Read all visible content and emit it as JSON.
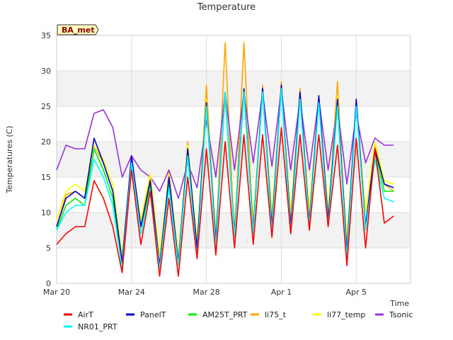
{
  "chart_data": {
    "type": "line",
    "title": "Temperature",
    "xlabel": "Time",
    "ylabel": "Temperatures (C)",
    "badge": "BA_met",
    "xlim": [
      0,
      18.9
    ],
    "ylim": [
      0,
      35
    ],
    "yticks": [
      0,
      5,
      10,
      15,
      20,
      25,
      30,
      35
    ],
    "xticks": [
      {
        "label": "Mar 20",
        "day": 0
      },
      {
        "label": "Mar 24",
        "day": 4
      },
      {
        "label": "Mar 28",
        "day": 8
      },
      {
        "label": "Apr 1",
        "day": 12
      },
      {
        "label": "Apr 5",
        "day": 16
      }
    ],
    "grid": true,
    "legend_position": "bottom",
    "series": [
      {
        "name": "AirT",
        "color": "#ff0000",
        "x": [
          0,
          0.5,
          1,
          1.5,
          2,
          2.5,
          3,
          3.5,
          4,
          4.5,
          5,
          5.5,
          6,
          6.5,
          7,
          7.5,
          8,
          8.5,
          9,
          9.5,
          10,
          10.5,
          11,
          11.5,
          12,
          12.5,
          13,
          13.5,
          14,
          14.5,
          15,
          15.5,
          16,
          16.5,
          17,
          17.5,
          18
        ],
        "y": [
          5.5,
          7,
          8,
          8,
          14.5,
          12,
          8,
          1.5,
          16,
          5.5,
          13,
          1,
          12,
          1,
          15,
          3.5,
          19,
          4,
          20,
          5,
          21,
          5.5,
          21,
          6.5,
          22,
          7,
          21,
          7.5,
          21,
          8,
          19.5,
          2.5,
          20.5,
          5,
          19,
          8.5,
          9.5
        ]
      },
      {
        "name": "PanelT",
        "color": "#0000cc",
        "x": [
          0,
          0.5,
          1,
          1.5,
          2,
          2.5,
          3,
          3.5,
          4,
          4.5,
          5,
          5.5,
          6,
          6.5,
          7,
          7.5,
          8,
          8.5,
          9,
          9.5,
          10,
          10.5,
          11,
          11.5,
          12,
          12.5,
          13,
          13.5,
          14,
          14.5,
          15,
          15.5,
          16,
          16.5,
          17,
          17.5,
          18
        ],
        "y": [
          8,
          12,
          13,
          12,
          20.5,
          17,
          13,
          3,
          18,
          8,
          14.5,
          2.5,
          15,
          3,
          19,
          5,
          25.5,
          6,
          27,
          7,
          27.5,
          7.5,
          27.5,
          8,
          28,
          8,
          27,
          8.5,
          26.5,
          9,
          26,
          4.5,
          26,
          8,
          19,
          14,
          13.5
        ]
      },
      {
        "name": "AM25T_PRT",
        "color": "#00ee00",
        "x": [
          0,
          0.5,
          1,
          1.5,
          2,
          2.5,
          3,
          3.5,
          4,
          4.5,
          5,
          5.5,
          6,
          6.5,
          7,
          7.5,
          8,
          8.5,
          9,
          9.5,
          10,
          10.5,
          11,
          11.5,
          12,
          12.5,
          13,
          13.5,
          14,
          14.5,
          15,
          15.5,
          16,
          16.5,
          17,
          17.5,
          18
        ],
        "y": [
          7.5,
          11,
          12,
          11,
          19,
          16,
          12,
          2,
          17.5,
          7,
          14,
          2,
          14,
          2.5,
          18.5,
          4,
          25,
          5.5,
          26.5,
          6.5,
          27,
          7,
          27,
          7,
          27.5,
          7,
          26.5,
          8,
          26,
          8.5,
          25.5,
          3.5,
          25.5,
          7.5,
          18.5,
          13,
          13
        ]
      },
      {
        "name": "li75_t",
        "color": "#ffa500",
        "x": [
          0,
          0.5,
          1,
          1.5,
          2,
          2.5,
          3,
          3.5,
          4,
          4.5,
          5,
          5.5,
          6,
          6.5,
          7,
          7.5,
          8,
          8.5,
          9,
          9.5,
          10,
          10.5,
          11,
          11.5,
          12,
          12.5,
          13,
          13.5,
          14,
          14.5,
          15,
          15.5,
          16,
          16.5,
          17,
          17.5,
          18
        ],
        "y": [
          8,
          12.5,
          13,
          12,
          19.5,
          17,
          13,
          2.5,
          18,
          8,
          15,
          2.5,
          16,
          3,
          20,
          4.5,
          28,
          5.5,
          34,
          6.5,
          34,
          7,
          28,
          8,
          28.5,
          8.5,
          27.5,
          9,
          26.5,
          9.5,
          28.5,
          4,
          25.5,
          8,
          19.5,
          14,
          13
        ]
      },
      {
        "name": "li77_temp",
        "color": "#ffff00",
        "x": [
          0,
          0.5,
          1,
          1.5,
          2,
          2.5,
          3,
          3.5,
          4,
          4.5,
          5,
          5.5,
          6,
          6.5,
          7,
          7.5,
          8,
          8.5,
          9,
          9.5,
          10,
          10.5,
          11,
          11.5,
          12,
          12.5,
          13,
          13.5,
          14,
          14.5,
          15,
          15.5,
          16,
          16.5,
          17,
          17.5,
          18
        ],
        "y": [
          9,
          13,
          14,
          13,
          19.5,
          17.5,
          14,
          4,
          17.5,
          9,
          15.5,
          4,
          15.5,
          4,
          19.5,
          6,
          26,
          7,
          27,
          8,
          27.5,
          9,
          27,
          10,
          27.5,
          10,
          26.5,
          10.5,
          26,
          10.5,
          26.5,
          6,
          25.5,
          10,
          20,
          14.5,
          14
        ]
      },
      {
        "name": "Tsonic",
        "color": "#9933dd",
        "x": [
          0,
          0.5,
          1,
          1.5,
          2,
          2.5,
          3,
          3.5,
          4,
          4.5,
          5,
          5.5,
          6,
          6.5,
          7,
          7.5,
          8,
          8.5,
          9,
          9.5,
          10,
          10.5,
          11,
          11.5,
          12,
          12.5,
          13,
          13.5,
          14,
          14.5,
          15,
          15.5,
          16,
          16.5,
          17,
          17.5,
          18
        ],
        "y": [
          16,
          19.5,
          19,
          19,
          24,
          24.5,
          22,
          15,
          18,
          16,
          15,
          13,
          16,
          12,
          17,
          13.5,
          23,
          15,
          27,
          16,
          27,
          17,
          27,
          16.5,
          27.5,
          16,
          26,
          16,
          26,
          16,
          25,
          14,
          24,
          17,
          20.5,
          19.5,
          19.5
        ]
      },
      {
        "name": "NR01_PRT",
        "color": "#00ffff",
        "x": [
          0,
          0.5,
          1,
          1.5,
          2,
          2.5,
          3,
          3.5,
          4,
          4.5,
          5,
          5.5,
          6,
          6.5,
          7,
          7.5,
          8,
          8.5,
          9,
          9.5,
          10,
          10.5,
          11,
          11.5,
          12,
          12.5,
          13,
          13.5,
          14,
          14.5,
          15,
          15.5,
          16,
          16.5,
          17,
          17.5,
          18
        ],
        "y": [
          7.5,
          10,
          11,
          11,
          17.5,
          15,
          11,
          2,
          17,
          7,
          13,
          2,
          13.5,
          2.5,
          18,
          3.5,
          25,
          5,
          27,
          6.5,
          27,
          7,
          27,
          7,
          27.5,
          7,
          26,
          8,
          25.5,
          8,
          25,
          3.5,
          25,
          7.5,
          17.5,
          12,
          11.5
        ]
      }
    ]
  }
}
